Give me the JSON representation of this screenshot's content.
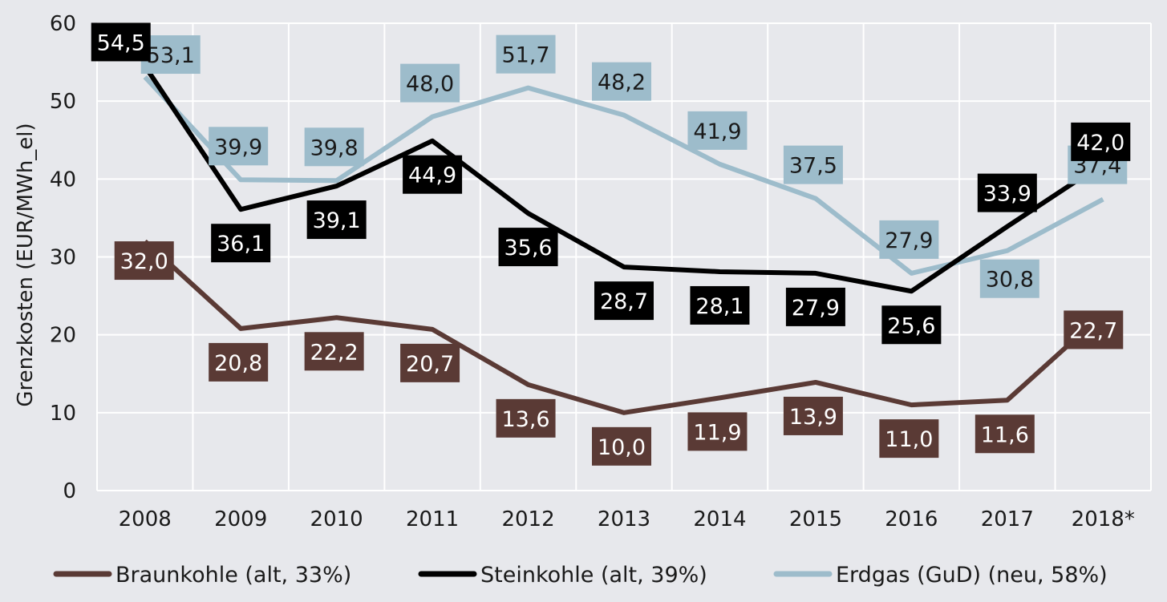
{
  "chart_data": {
    "type": "line",
    "title": "",
    "xlabel": "",
    "ylabel": "Grenzkosten (EUR/MWh_el)",
    "categories": [
      "2008",
      "2009",
      "2010",
      "2011",
      "2012",
      "2013",
      "2014",
      "2015",
      "2016",
      "2017",
      "2018*"
    ],
    "yticks": [
      "0",
      "10",
      "20",
      "30",
      "40",
      "50",
      "60"
    ],
    "ylim": [
      0,
      60
    ],
    "grid": true,
    "legend_position": "bottom",
    "series": [
      {
        "name": "Braunkohle (alt, 33%)",
        "color": "#5a3a35",
        "values": [
          32.0,
          20.8,
          22.2,
          20.7,
          13.6,
          10.0,
          11.9,
          13.9,
          11.0,
          11.6,
          22.7
        ],
        "labels": [
          "32,0",
          "20,8",
          "22,2",
          "20,7",
          "13,6",
          "10,0",
          "11,9",
          "13,9",
          "11,0",
          "11,6",
          "22,7"
        ]
      },
      {
        "name": "Steinkohle (alt, 39%)",
        "color": "#000000",
        "values": [
          54.5,
          36.1,
          39.1,
          44.9,
          35.6,
          28.7,
          28.1,
          27.9,
          25.6,
          33.9,
          42.0
        ],
        "labels": [
          "54,5",
          "36,1",
          "39,1",
          "44,9",
          "35,6",
          "28,7",
          "28,1",
          "27,9",
          "25,6",
          "33,9",
          "42,0"
        ]
      },
      {
        "name": "Erdgas (GuD) (neu, 58%)",
        "color": "#9dbccb",
        "values": [
          53.1,
          39.9,
          39.8,
          48.0,
          51.7,
          48.2,
          41.9,
          37.5,
          27.9,
          30.8,
          37.4
        ],
        "labels": [
          "53,1",
          "39,9",
          "39,8",
          "48,0",
          "51,7",
          "48,2",
          "41,9",
          "37,5",
          "27,9",
          "30,8",
          "37,4"
        ]
      }
    ]
  }
}
